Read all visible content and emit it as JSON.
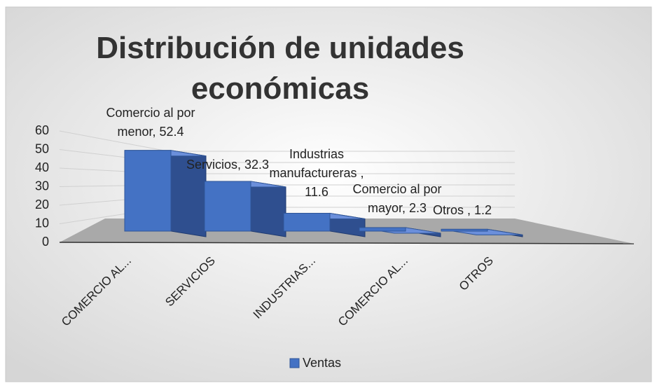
{
  "chart_data": {
    "type": "bar3d",
    "title": "Distribución de unidades económicas",
    "categories": [
      "COMERCIO AL...",
      "SERVICIOS",
      "INDUSTRIAS...",
      "COMERCIO AL...",
      "OTROS"
    ],
    "series": [
      {
        "name": "Ventas",
        "color": "#4472c4",
        "values": [
          52.4,
          32.3,
          11.6,
          2.3,
          1.2
        ],
        "value_labels": [
          "Comercio al por menor, 52.4",
          "Servicios, 32.3",
          "Industrias manufactureras , 11.6",
          "Comercio al por mayor, 2.3",
          "Otros , 1.2"
        ]
      }
    ],
    "ylim": [
      0,
      60
    ],
    "yticks": [
      0,
      10,
      20,
      30,
      40,
      50,
      60
    ],
    "grid": true,
    "legend": "bottom"
  }
}
